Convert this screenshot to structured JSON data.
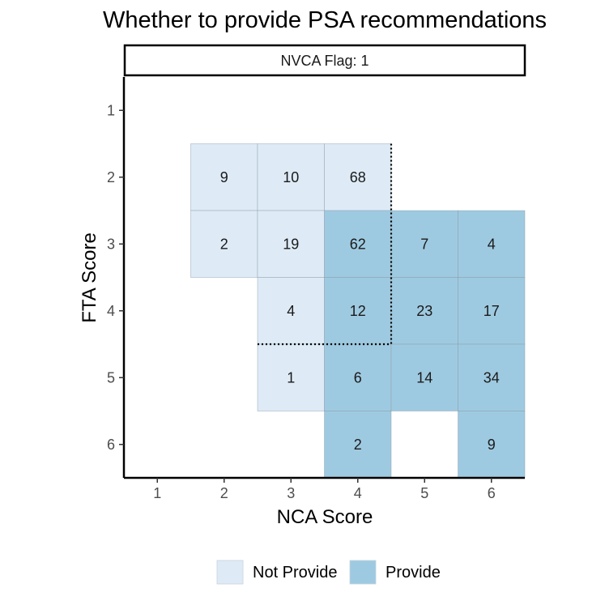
{
  "chart_data": {
    "type": "heatmap",
    "title": "Whether to provide PSA recommendations",
    "facet_label": "NVCA Flag: 1",
    "xlabel": "NCA Score",
    "ylabel": "FTA Score",
    "x_ticks": [
      "1",
      "2",
      "3",
      "4",
      "5",
      "6"
    ],
    "y_ticks": [
      "1",
      "2",
      "3",
      "4",
      "5",
      "6"
    ],
    "xlim": [
      0.5,
      6.5
    ],
    "ylim": [
      0.5,
      6.5
    ],
    "y_reversed": true,
    "grid": false,
    "legend_position": "bottom",
    "legend": [
      {
        "key": "not_provide",
        "label": "Not Provide",
        "color": "#deebf7"
      },
      {
        "key": "provide",
        "label": "Provide",
        "color": "#9ecae1"
      }
    ],
    "cells": [
      {
        "nca": 2,
        "fta": 2,
        "value": 9,
        "category": "not_provide"
      },
      {
        "nca": 3,
        "fta": 2,
        "value": 10,
        "category": "not_provide"
      },
      {
        "nca": 4,
        "fta": 2,
        "value": 68,
        "category": "not_provide"
      },
      {
        "nca": 2,
        "fta": 3,
        "value": 2,
        "category": "not_provide"
      },
      {
        "nca": 3,
        "fta": 3,
        "value": 19,
        "category": "not_provide"
      },
      {
        "nca": 4,
        "fta": 3,
        "value": 62,
        "category": "provide"
      },
      {
        "nca": 5,
        "fta": 3,
        "value": 7,
        "category": "provide"
      },
      {
        "nca": 6,
        "fta": 3,
        "value": 4,
        "category": "provide"
      },
      {
        "nca": 3,
        "fta": 4,
        "value": 4,
        "category": "not_provide"
      },
      {
        "nca": 4,
        "fta": 4,
        "value": 12,
        "category": "provide"
      },
      {
        "nca": 5,
        "fta": 4,
        "value": 23,
        "category": "provide"
      },
      {
        "nca": 6,
        "fta": 4,
        "value": 17,
        "category": "provide"
      },
      {
        "nca": 3,
        "fta": 5,
        "value": 1,
        "category": "not_provide"
      },
      {
        "nca": 4,
        "fta": 5,
        "value": 6,
        "category": "provide"
      },
      {
        "nca": 5,
        "fta": 5,
        "value": 14,
        "category": "provide"
      },
      {
        "nca": 6,
        "fta": 5,
        "value": 34,
        "category": "provide"
      },
      {
        "nca": 4,
        "fta": 6,
        "value": 2,
        "category": "provide"
      },
      {
        "nca": 6,
        "fta": 6,
        "value": 9,
        "category": "provide"
      }
    ],
    "threshold_lines": [
      {
        "x": [
          4.5,
          4.5
        ],
        "y": [
          1.5,
          4.5
        ],
        "style": "dotted"
      },
      {
        "x": [
          2.5,
          4.5
        ],
        "y": [
          4.5,
          4.5
        ],
        "style": "dotted"
      }
    ]
  }
}
